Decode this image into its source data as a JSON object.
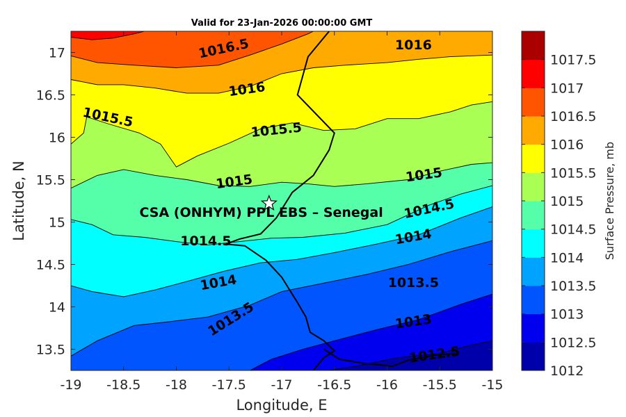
{
  "chart_data": {
    "type": "filled-contour",
    "title": "Valid for 23-Jan-2026 00:00:00 GMT",
    "xlabel": "Longitude, E",
    "ylabel": "Latitude, N",
    "xlim": [
      -19,
      -15
    ],
    "ylim": [
      13.25,
      17.25
    ],
    "xticks": [
      "-19",
      "-18.5",
      "-18",
      "-17.5",
      "-17",
      "-16.5",
      "-16",
      "-15.5",
      "-15"
    ],
    "yticks": [
      "13.5",
      "14",
      "14.5",
      "15",
      "15.5",
      "16",
      "16.5",
      "17"
    ],
    "colorbar": {
      "label": "Surface Pressure, mb",
      "ticks": [
        "1012",
        "1012.5",
        "1013",
        "1013.5",
        "1014",
        "1014.5",
        "1015",
        "1015.5",
        "1016",
        "1016.5",
        "1017",
        "1017.5"
      ],
      "colors": [
        "#0000AA",
        "#0000EE",
        "#0055FF",
        "#00A4FF",
        "#00FFFF",
        "#55FFAA",
        "#AAFF55",
        "#FFFF00",
        "#FFAA00",
        "#FF5500",
        "#FF0000",
        "#AA0000"
      ]
    },
    "contours": [
      {
        "level": 1012.5,
        "label": "1012.5",
        "points": [
          [
            -16.55,
            13.25
          ],
          [
            -16.3,
            13.3
          ],
          [
            -15.9,
            13.4
          ],
          [
            -15.5,
            13.45
          ],
          [
            -15.2,
            13.55
          ],
          [
            -15,
            13.6
          ]
        ]
      },
      {
        "level": 1013,
        "label": "1013",
        "points": [
          [
            -17.3,
            13.25
          ],
          [
            -17.1,
            13.38
          ],
          [
            -16.8,
            13.5
          ],
          [
            -16.5,
            13.6
          ],
          [
            -16.1,
            13.73
          ],
          [
            -15.7,
            13.85
          ],
          [
            -15.3,
            14.03
          ],
          [
            -15,
            14.15
          ]
        ]
      },
      {
        "level": 1013.5,
        "label": "1013.5",
        "points": [
          [
            -19,
            13.42
          ],
          [
            -18.75,
            13.6
          ],
          [
            -18.4,
            13.78
          ],
          [
            -18.1,
            13.82
          ],
          [
            -17.7,
            13.88
          ],
          [
            -17.3,
            14.02
          ],
          [
            -17,
            14.18
          ],
          [
            -16.6,
            14.28
          ],
          [
            -16.2,
            14.38
          ],
          [
            -15.8,
            14.5
          ],
          [
            -15.4,
            14.65
          ],
          [
            -15,
            14.78
          ]
        ]
      },
      {
        "level": 1014,
        "label": "1014",
        "points": [
          [
            -19,
            14.25
          ],
          [
            -18.8,
            14.18
          ],
          [
            -18.5,
            14.12
          ],
          [
            -18.2,
            14.2
          ],
          [
            -17.9,
            14.3
          ],
          [
            -17.55,
            14.42
          ],
          [
            -17.2,
            14.52
          ],
          [
            -16.85,
            14.56
          ],
          [
            -16.5,
            14.64
          ],
          [
            -16.1,
            14.74
          ],
          [
            -15.7,
            14.85
          ],
          [
            -15.3,
            15.05
          ],
          [
            -15,
            15.18
          ]
        ]
      },
      {
        "level": 1014.5,
        "label": "1014.5",
        "points": [
          [
            -19,
            15.03
          ],
          [
            -18.8,
            14.97
          ],
          [
            -18.6,
            14.85
          ],
          [
            -18.3,
            14.82
          ],
          [
            -18,
            14.77
          ],
          [
            -17.7,
            14.73
          ],
          [
            -17.4,
            14.77
          ],
          [
            -17.1,
            14.81
          ],
          [
            -16.8,
            14.82
          ],
          [
            -16.4,
            14.87
          ],
          [
            -16,
            14.97
          ],
          [
            -15.6,
            15.2
          ],
          [
            -15.3,
            15.33
          ],
          [
            -15,
            15.43
          ]
        ]
      },
      {
        "level": 1015,
        "label": "1015",
        "points": [
          [
            -19,
            15.4
          ],
          [
            -18.75,
            15.55
          ],
          [
            -18.5,
            15.62
          ],
          [
            -18.2,
            15.55
          ],
          [
            -17.9,
            15.5
          ],
          [
            -17.6,
            15.43
          ],
          [
            -17.3,
            15.42
          ],
          [
            -17,
            15.47
          ],
          [
            -16.75,
            15.45
          ],
          [
            -16.5,
            15.42
          ],
          [
            -16.2,
            15.45
          ],
          [
            -15.8,
            15.5
          ],
          [
            -15.5,
            15.6
          ],
          [
            -15.2,
            15.68
          ],
          [
            -15,
            15.7
          ]
        ]
      },
      {
        "level": 1015.5,
        "label": "1015.5",
        "points": [
          [
            -19,
            15.92
          ],
          [
            -18.88,
            16.05
          ],
          [
            -18.85,
            16.24
          ],
          [
            -18.65,
            16.16
          ],
          [
            -18.35,
            16.05
          ],
          [
            -18.15,
            15.92
          ],
          [
            -18,
            15.65
          ],
          [
            -17.8,
            15.78
          ],
          [
            -17.5,
            15.93
          ],
          [
            -17.2,
            16.1
          ],
          [
            -16.9,
            16.17
          ],
          [
            -16.6,
            16.08
          ],
          [
            -16.3,
            16.1
          ],
          [
            -16,
            16.22
          ],
          [
            -15.7,
            16.22
          ],
          [
            -15.4,
            16.3
          ],
          [
            -15.2,
            16.38
          ],
          [
            -15,
            16.42
          ]
        ]
      },
      {
        "level": 1016,
        "label": "1016",
        "points": [
          [
            -19,
            16.68
          ],
          [
            -18.75,
            16.62
          ],
          [
            -18.5,
            16.62
          ],
          [
            -18.2,
            16.58
          ],
          [
            -17.9,
            16.52
          ],
          [
            -17.6,
            16.52
          ],
          [
            -17.3,
            16.6
          ],
          [
            -17,
            16.75
          ],
          [
            -16.7,
            16.82
          ],
          [
            -16.4,
            16.85
          ],
          [
            -16,
            16.88
          ],
          [
            -15.7,
            16.92
          ],
          [
            -15.4,
            16.95
          ],
          [
            -15,
            16.97
          ]
        ]
      },
      {
        "level": 1016.5,
        "label": "1016.5",
        "points": [
          [
            -19,
            16.96
          ],
          [
            -18.75,
            16.88
          ],
          [
            -18.4,
            16.85
          ],
          [
            -18,
            16.82
          ],
          [
            -17.6,
            16.85
          ],
          [
            -17.3,
            16.97
          ],
          [
            -17,
            17.1
          ],
          [
            -16.75,
            17.22
          ],
          [
            -16.7,
            17.25
          ]
        ]
      },
      {
        "level": 1017,
        "label": "",
        "points": [
          [
            -19,
            17.18
          ],
          [
            -18.8,
            17.15
          ],
          [
            -18.6,
            17.17
          ],
          [
            -18.4,
            17.22
          ],
          [
            -18.3,
            17.25
          ]
        ]
      }
    ],
    "contour_labels": [
      {
        "text": "1016.5",
        "x": -17.55,
        "y": 17.04,
        "rotation": -12
      },
      {
        "text": "1016",
        "x": -15.75,
        "y": 17.08,
        "rotation": 0
      },
      {
        "text": "1016",
        "x": -17.33,
        "y": 16.56,
        "rotation": -8
      },
      {
        "text": "1015.5",
        "x": -18.65,
        "y": 16.23,
        "rotation": 12
      },
      {
        "text": "1015.5",
        "x": -17.05,
        "y": 16.08,
        "rotation": -6
      },
      {
        "text": "1015",
        "x": -17.45,
        "y": 15.47,
        "rotation": -8
      },
      {
        "text": "1015",
        "x": -15.65,
        "y": 15.55,
        "rotation": -8
      },
      {
        "text": "1014.5",
        "x": -15.6,
        "y": 15.15,
        "rotation": -12
      },
      {
        "text": "1014.5",
        "x": -17.72,
        "y": 14.77,
        "rotation": 0
      },
      {
        "text": "1014",
        "x": -15.75,
        "y": 14.82,
        "rotation": -10
      },
      {
        "text": "1014",
        "x": -17.6,
        "y": 14.28,
        "rotation": -10
      },
      {
        "text": "1013.5",
        "x": -15.75,
        "y": 14.28,
        "rotation": 0
      },
      {
        "text": "1013.5",
        "x": -17.48,
        "y": 13.85,
        "rotation": -32
      },
      {
        "text": "1013",
        "x": -15.75,
        "y": 13.82,
        "rotation": -8
      },
      {
        "text": "1012.5",
        "x": -15.55,
        "y": 13.43,
        "rotation": -8
      }
    ],
    "coastline": [
      [
        -16.55,
        17.25
      ],
      [
        -16.75,
        16.95
      ],
      [
        -16.85,
        16.5
      ],
      [
        -16.5,
        16.05
      ],
      [
        -16.55,
        15.85
      ],
      [
        -16.7,
        15.55
      ],
      [
        -16.9,
        15.35
      ],
      [
        -17.05,
        15.05
      ],
      [
        -17.2,
        14.86
      ],
      [
        -17.4,
        14.8
      ],
      [
        -17.53,
        14.74
      ],
      [
        -17.35,
        14.72
      ],
      [
        -17.15,
        14.55
      ],
      [
        -17.0,
        14.35
      ],
      [
        -16.85,
        14.05
      ],
      [
        -16.77,
        13.88
      ],
      [
        -16.73,
        13.7
      ],
      [
        -16.6,
        13.6
      ],
      [
        -16.5,
        13.48
      ],
      [
        -16.6,
        13.4
      ],
      [
        -16.7,
        13.25
      ]
    ],
    "gambia_river": [
      [
        -16.6,
        13.5
      ],
      [
        -16.45,
        13.38
      ],
      [
        -16.2,
        13.33
      ],
      [
        -15.95,
        13.3
      ],
      [
        -15.8,
        13.37
      ],
      [
        -15.55,
        13.43
      ],
      [
        -15.35,
        13.45
      ]
    ],
    "site": {
      "name": "CSA (ONHYM) PPL EBS  – Senegal",
      "lon": -17.12,
      "lat": 15.22
    },
    "grid": false
  }
}
